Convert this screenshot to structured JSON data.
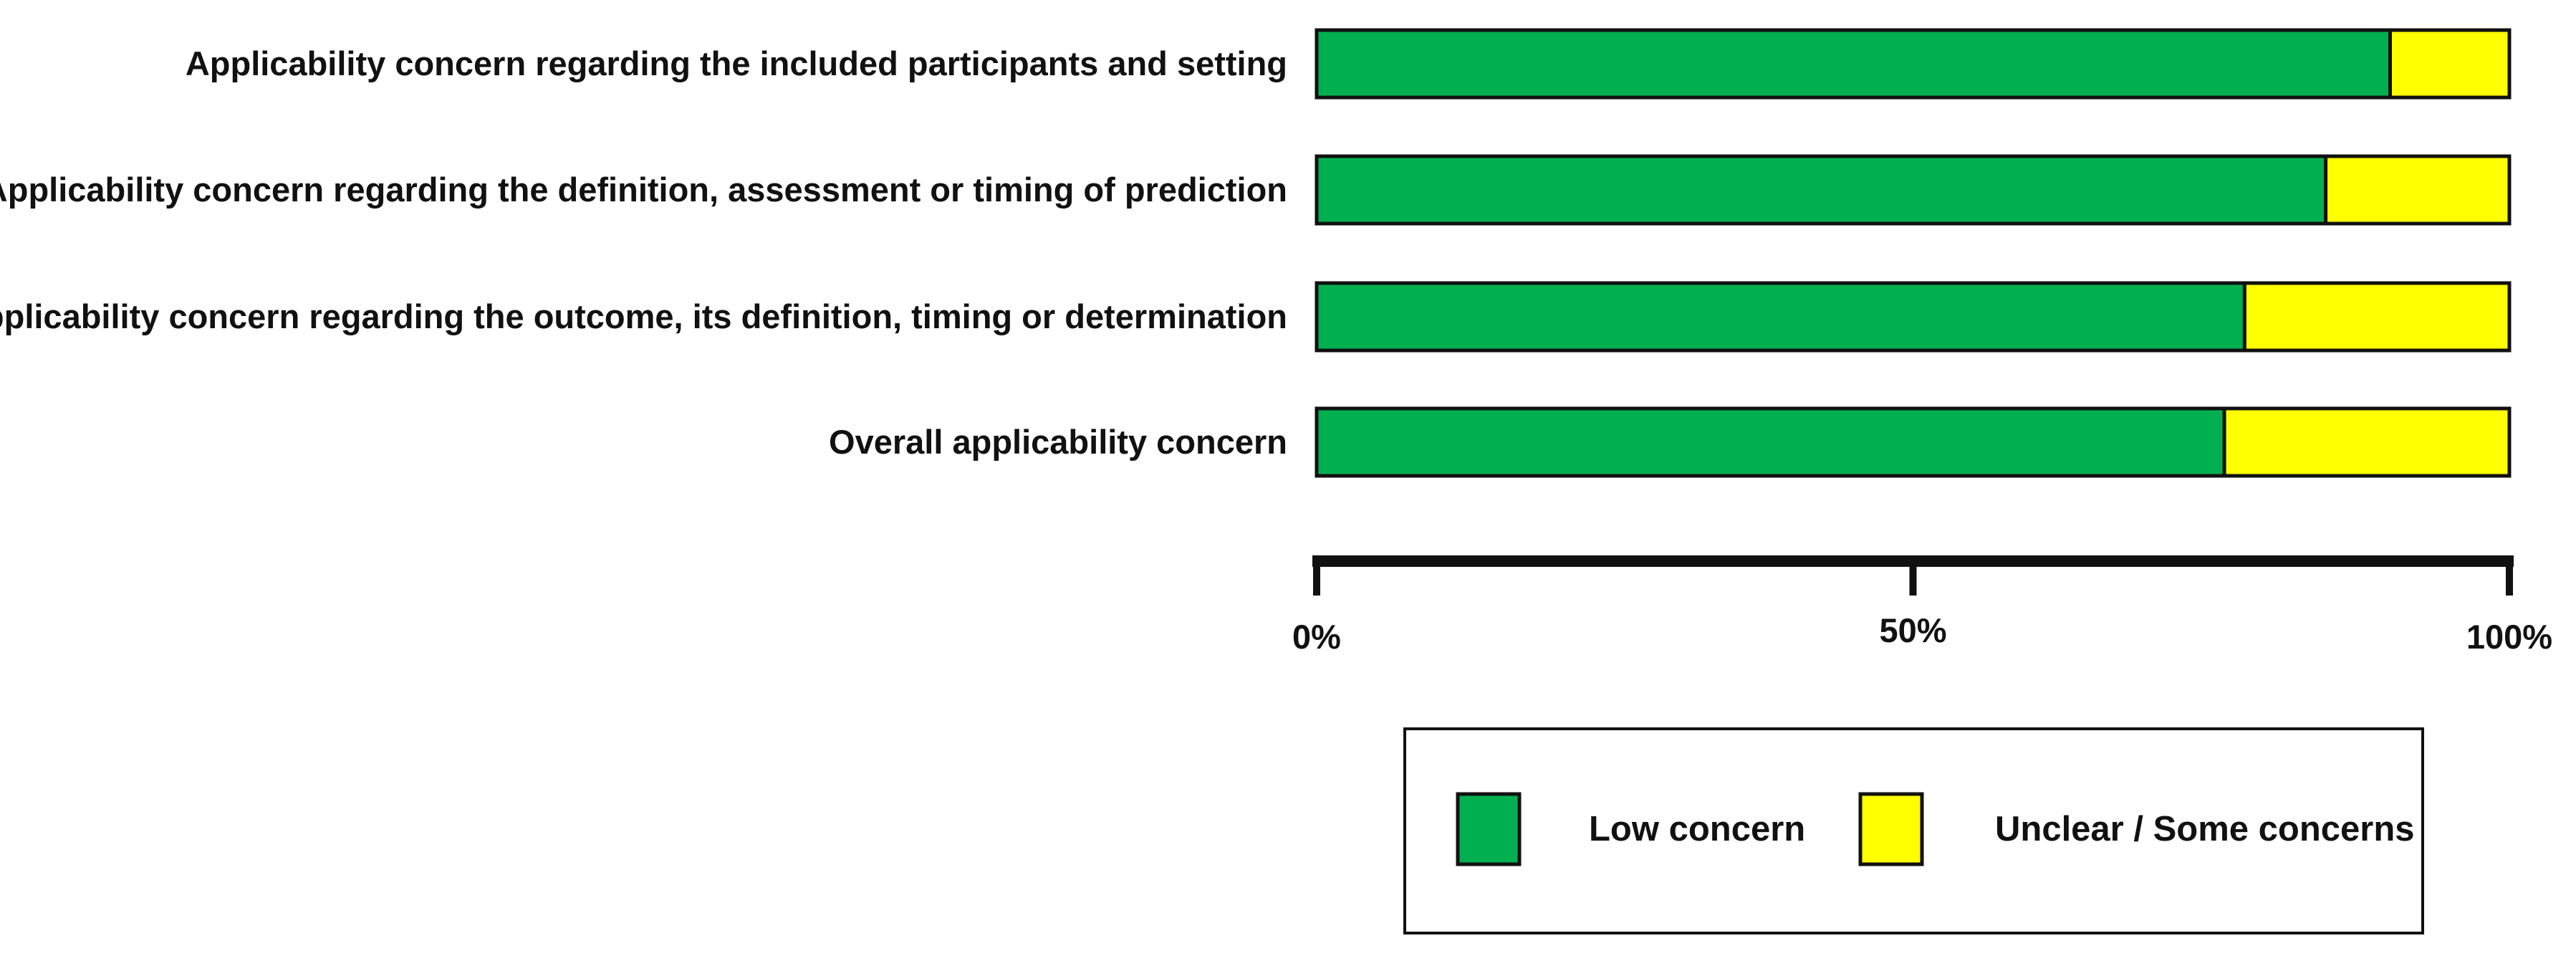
{
  "chart_data": {
    "type": "bar",
    "orientation": "horizontal",
    "stacked": true,
    "normalized_percent": true,
    "categories": [
      "Applicability concern regarding the included participants and setting",
      "Applicability concern regarding the definition, assessment or timing of prediction",
      "Applicability concern regarding the outcome, its definition, timing or determination",
      "Overall applicability concern"
    ],
    "series": [
      {
        "name": "Low concern",
        "color": "#00b050",
        "values": [
          90,
          84.6,
          77.8,
          76.1
        ]
      },
      {
        "name": "Unclear / Some concerns",
        "color": "#ffff00",
        "values": [
          10,
          15.4,
          22.2,
          23.9
        ]
      }
    ],
    "xlim": [
      0,
      100
    ],
    "xticks": [
      0,
      50,
      100
    ],
    "xtick_labels": [
      "0%",
      "50%",
      "100%"
    ],
    "grid": false,
    "legend_position": "bottom"
  }
}
